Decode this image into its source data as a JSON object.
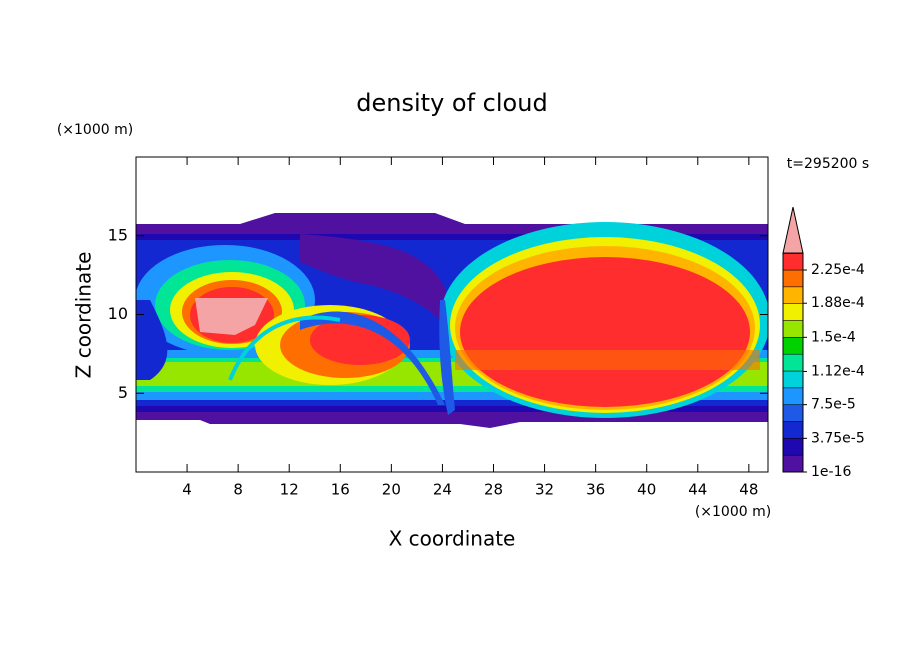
{
  "chart_data": {
    "type": "contour",
    "title": "density of cloud",
    "subtitle": "t=295200 s",
    "x_label": "X coordinate",
    "y_label": "Z coordinate",
    "x_unit": "(×1000 m)",
    "y_unit": "(×1000 m)",
    "xlim": [
      0,
      49.5
    ],
    "ylim": [
      0,
      20
    ],
    "xticks": [
      4,
      8,
      12,
      16,
      20,
      24,
      28,
      32,
      36,
      40,
      44,
      48
    ],
    "yticks": [
      5,
      10,
      15
    ],
    "colorbar": {
      "ticks": [
        1e-16,
        {
          "value": 3.75e-05,
          "label": "3.75e-5"
        },
        {
          "value": 7.5e-05,
          "label": "7.5e-5"
        },
        {
          "value": 0.000112,
          "label": "1.12e-4"
        },
        {
          "value": 0.00015,
          "label": "1.5e-4"
        },
        {
          "value": 0.000188,
          "label": "1.88e-4"
        },
        {
          "value": 0.000225,
          "label": "2.25e-4"
        }
      ],
      "colors": [
        "#5010a0",
        "#2008b0",
        "#1428d2",
        "#1e5ae6",
        "#1e96ff",
        "#00d2dc",
        "#00e696",
        "#00d200",
        "#96e600",
        "#f0f000",
        "#ffb400",
        "#ff6e00",
        "#ff2d2d"
      ],
      "extend": "max",
      "extend_color": "#f4a4a4"
    }
  }
}
